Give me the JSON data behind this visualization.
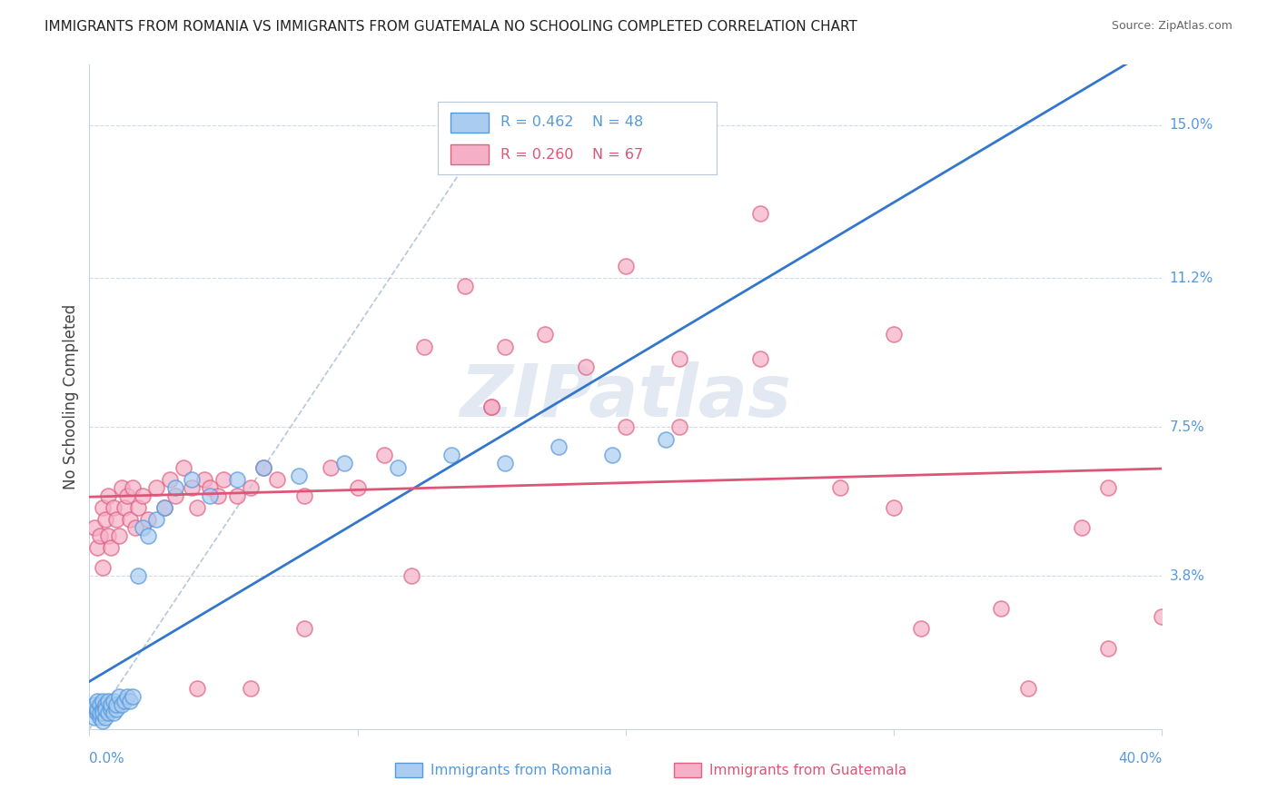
{
  "title": "IMMIGRANTS FROM ROMANIA VS IMMIGRANTS FROM GUATEMALA NO SCHOOLING COMPLETED CORRELATION CHART",
  "source": "Source: ZipAtlas.com",
  "ylabel": "No Schooling Completed",
  "ytick_labels": [
    "15.0%",
    "11.2%",
    "7.5%",
    "3.8%"
  ],
  "ytick_values": [
    0.15,
    0.112,
    0.075,
    0.038
  ],
  "xlim": [
    0.0,
    0.4
  ],
  "ylim": [
    0.0,
    0.165
  ],
  "legend_r1": "R = 0.462",
  "legend_n1": "N = 48",
  "legend_r2": "R = 0.260",
  "legend_n2": "N = 67",
  "color_romania_fill": "#aaccf0",
  "color_romania_edge": "#5599dd",
  "color_guatemala_fill": "#f5b0c8",
  "color_guatemala_edge": "#e06080",
  "color_romania_line": "#3377cc",
  "color_guatemala_line": "#dd5577",
  "color_diagonal": "#b8c8d8",
  "title_color": "#222222",
  "axis_tick_color": "#5599dd",
  "watermark_color": "#ccd8e8",
  "romania_x": [
    0.001,
    0.002,
    0.002,
    0.003,
    0.003,
    0.003,
    0.004,
    0.004,
    0.004,
    0.005,
    0.005,
    0.005,
    0.005,
    0.006,
    0.006,
    0.006,
    0.007,
    0.007,
    0.008,
    0.008,
    0.009,
    0.009,
    0.01,
    0.01,
    0.011,
    0.012,
    0.013,
    0.014,
    0.015,
    0.016,
    0.018,
    0.02,
    0.022,
    0.025,
    0.028,
    0.032,
    0.038,
    0.045,
    0.055,
    0.065,
    0.078,
    0.095,
    0.115,
    0.135,
    0.155,
    0.175,
    0.195,
    0.215
  ],
  "romania_y": [
    0.005,
    0.003,
    0.006,
    0.004,
    0.005,
    0.007,
    0.003,
    0.006,
    0.004,
    0.002,
    0.005,
    0.007,
    0.004,
    0.003,
    0.006,
    0.005,
    0.004,
    0.007,
    0.005,
    0.006,
    0.004,
    0.007,
    0.005,
    0.006,
    0.008,
    0.006,
    0.007,
    0.008,
    0.007,
    0.008,
    0.038,
    0.05,
    0.048,
    0.052,
    0.055,
    0.06,
    0.062,
    0.058,
    0.062,
    0.065,
    0.063,
    0.066,
    0.065,
    0.068,
    0.066,
    0.07,
    0.068,
    0.072
  ],
  "guatemala_x": [
    0.002,
    0.003,
    0.004,
    0.005,
    0.005,
    0.006,
    0.007,
    0.007,
    0.008,
    0.009,
    0.01,
    0.011,
    0.012,
    0.013,
    0.014,
    0.015,
    0.016,
    0.017,
    0.018,
    0.02,
    0.022,
    0.025,
    0.028,
    0.03,
    0.032,
    0.035,
    0.038,
    0.04,
    0.043,
    0.045,
    0.048,
    0.05,
    0.055,
    0.06,
    0.065,
    0.07,
    0.08,
    0.09,
    0.1,
    0.11,
    0.125,
    0.14,
    0.155,
    0.17,
    0.185,
    0.2,
    0.22,
    0.25,
    0.28,
    0.31,
    0.34,
    0.37,
    0.38,
    0.4,
    0.15,
    0.2,
    0.25,
    0.3,
    0.35,
    0.12,
    0.08,
    0.06,
    0.04,
    0.15,
    0.22,
    0.3,
    0.38
  ],
  "guatemala_y": [
    0.05,
    0.045,
    0.048,
    0.055,
    0.04,
    0.052,
    0.048,
    0.058,
    0.045,
    0.055,
    0.052,
    0.048,
    0.06,
    0.055,
    0.058,
    0.052,
    0.06,
    0.05,
    0.055,
    0.058,
    0.052,
    0.06,
    0.055,
    0.062,
    0.058,
    0.065,
    0.06,
    0.055,
    0.062,
    0.06,
    0.058,
    0.062,
    0.058,
    0.06,
    0.065,
    0.062,
    0.058,
    0.065,
    0.06,
    0.068,
    0.095,
    0.11,
    0.095,
    0.098,
    0.09,
    0.115,
    0.092,
    0.092,
    0.06,
    0.025,
    0.03,
    0.05,
    0.02,
    0.028,
    0.08,
    0.075,
    0.128,
    0.055,
    0.01,
    0.038,
    0.025,
    0.01,
    0.01,
    0.08,
    0.075,
    0.098,
    0.06
  ]
}
